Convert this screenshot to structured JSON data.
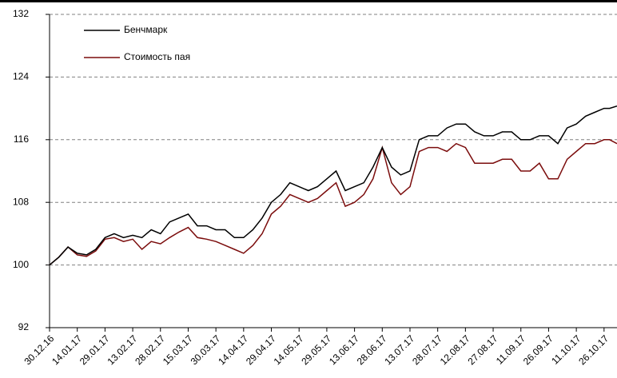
{
  "chart_data": {
    "type": "line",
    "x": [
      "30.12.16",
      "04.01.17",
      "09.01.17",
      "14.01.17",
      "19.01.17",
      "24.01.17",
      "29.01.17",
      "03.02.17",
      "08.02.17",
      "13.02.17",
      "18.02.17",
      "23.02.17",
      "28.02.17",
      "05.03.17",
      "10.03.17",
      "15.03.17",
      "20.03.17",
      "25.03.17",
      "30.03.17",
      "04.04.17",
      "09.04.17",
      "14.04.17",
      "19.04.17",
      "24.04.17",
      "29.04.17",
      "04.05.17",
      "09.05.17",
      "14.05.17",
      "19.05.17",
      "24.05.17",
      "29.05.17",
      "03.06.17",
      "08.06.17",
      "13.06.17",
      "18.06.17",
      "23.06.17",
      "28.06.17",
      "03.07.17",
      "08.07.17",
      "13.07.17",
      "18.07.17",
      "23.07.17",
      "28.07.17",
      "02.08.17",
      "07.08.17",
      "12.08.17",
      "17.08.17",
      "22.08.17",
      "27.08.17",
      "01.09.17",
      "06.09.17",
      "11.09.17",
      "16.09.17",
      "21.09.17",
      "26.09.17",
      "01.10.17",
      "06.10.17",
      "11.10.17",
      "16.10.17",
      "21.10.17",
      "26.10.17",
      "29.10.17",
      "02.11.17"
    ],
    "series": [
      {
        "name": "Бенчмарк",
        "color": "#000000",
        "values": [
          100,
          101,
          102.3,
          101.5,
          101.3,
          102,
          103.5,
          104,
          103.5,
          103.8,
          103.5,
          104.5,
          104,
          105.5,
          106,
          106.5,
          105,
          105,
          104.5,
          104.5,
          103.5,
          103.5,
          104.5,
          106,
          108,
          109,
          110.5,
          110,
          109.5,
          110,
          111,
          112,
          109.5,
          110,
          110.5,
          112.5,
          115,
          112.5,
          111.5,
          112,
          116,
          116.5,
          116.5,
          117.5,
          118,
          118,
          117,
          116.5,
          116.5,
          117,
          117,
          116,
          116,
          116.5,
          116.5,
          115.5,
          117.5,
          118,
          119,
          119.5,
          120,
          120,
          120.3
        ]
      },
      {
        "name": "Стоимость пая",
        "color": "#7b0c0c",
        "values": [
          100,
          101,
          102.3,
          101.3,
          101.1,
          101.8,
          103.3,
          103.5,
          103,
          103.3,
          102,
          103,
          102.7,
          103.5,
          104.2,
          104.8,
          103.5,
          103.3,
          103,
          102.5,
          102,
          101.5,
          102.5,
          104,
          106.5,
          107.5,
          109,
          108.5,
          108,
          108.5,
          109.5,
          110.5,
          107.5,
          108,
          109,
          111,
          115,
          110.5,
          109,
          110,
          114.5,
          115,
          115,
          114.5,
          115.5,
          115,
          113,
          113,
          113,
          113.5,
          113.5,
          112,
          112,
          113,
          111,
          111,
          113.5,
          114.5,
          115.5,
          115.5,
          116,
          116,
          115.5
        ]
      }
    ],
    "xlim": [
      "30.12.16",
      "02.11.17"
    ],
    "xticks": [
      "30.12.16",
      "14.01.17",
      "29.01.17",
      "13.02.17",
      "28.02.17",
      "15.03.17",
      "30.03.17",
      "14.04.17",
      "29.04.17",
      "14.05.17",
      "29.05.17",
      "13.06.17",
      "28.06.17",
      "13.07.17",
      "28.07.17",
      "12.08.17",
      "27.08.17",
      "11.09.17",
      "26.09.17",
      "11.10.17",
      "26.10.17"
    ],
    "ylim": [
      92,
      132
    ],
    "yticks": [
      92,
      100,
      108,
      116,
      124,
      132
    ],
    "grid": true,
    "legend": "upper left"
  }
}
